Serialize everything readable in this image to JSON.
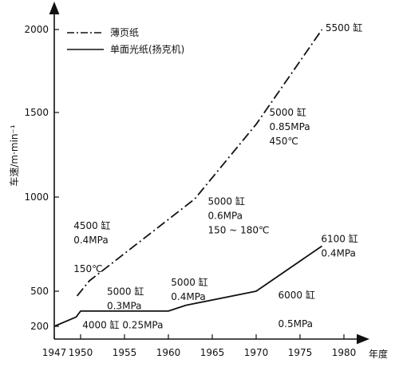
{
  "chart_data": {
    "type": "line",
    "title": "",
    "xlabel": "年度",
    "ylabel": "车速/m·min⁻¹",
    "xlim": [
      1947,
      1980
    ],
    "ylim": [
      0,
      2100
    ],
    "x_ticks": [
      1947,
      1950,
      1955,
      1960,
      1965,
      1970,
      1975,
      1980
    ],
    "x_tick_labels": [
      "1947",
      "1950",
      "1955",
      "1960",
      "1965",
      "1970",
      "1975",
      "1980"
    ],
    "y_ticks": [
      200,
      500,
      1000,
      1500,
      2000
    ],
    "y_tick_labels": [
      "200",
      "500",
      "1000",
      "1500",
      "2000"
    ],
    "legend_position": "top-left",
    "series": [
      {
        "name": "薄页纸",
        "style": "dash-dot",
        "points": [
          {
            "x": 1949.6,
            "y": 460
          },
          {
            "x": 1951,
            "y": 555
          },
          {
            "x": 1963,
            "y": 990
          },
          {
            "x": 1970,
            "y": 1430
          },
          {
            "x": 1977.5,
            "y": 2000
          }
        ]
      },
      {
        "name": "单面光纸(扬克机)",
        "style": "solid",
        "points": [
          {
            "x": 1947,
            "y": 200
          },
          {
            "x": 1949.5,
            "y": 280
          },
          {
            "x": 1950,
            "y": 330
          },
          {
            "x": 1950.5,
            "y": 330
          },
          {
            "x": 1960,
            "y": 330
          },
          {
            "x": 1962,
            "y": 380
          },
          {
            "x": 1970,
            "y": 500
          },
          {
            "x": 1977.5,
            "y": 740
          }
        ]
      }
    ],
    "annotations": [
      {
        "id": "a5500",
        "lines": [
          "5500 缸"
        ],
        "x": 1977.9,
        "y": 1990
      },
      {
        "id": "a5000-085",
        "lines": [
          "5000 缸",
          "0.85MPa",
          "450℃"
        ],
        "x": 1971.5,
        "y": 1480
      },
      {
        "id": "a5000-06",
        "lines": [
          "5000 缸",
          "0.6MPa",
          "150 ~ 180℃"
        ],
        "x": 1964.5,
        "y": 960
      },
      {
        "id": "a4500",
        "lines": [
          "4500 缸",
          "0.4MPa",
          "",
          "150℃"
        ],
        "x": 1949.2,
        "y": 830
      },
      {
        "id": "a5000-04",
        "lines": [
          "5000 缸",
          "0.4MPa"
        ],
        "x": 1960.3,
        "y": 530
      },
      {
        "id": "a5000-03",
        "lines": [
          "5000 缸",
          "0.3MPa"
        ],
        "x": 1953,
        "y": 470
      },
      {
        "id": "a4000",
        "lines": [
          "4000 缸  0.25MPa"
        ],
        "x": 1950.2,
        "y": 170
      },
      {
        "id": "a6000",
        "lines": [
          "6000 缸",
          "",
          "0.5MPa"
        ],
        "x": 1972.5,
        "y": 440
      },
      {
        "id": "a6100",
        "lines": [
          "6100 缸",
          "0.4MPa"
        ],
        "x": 1977.4,
        "y": 760
      }
    ]
  }
}
